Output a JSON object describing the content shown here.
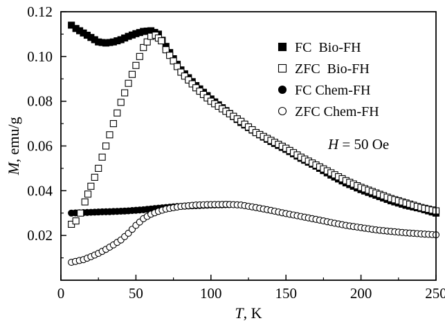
{
  "chart_data": {
    "type": "scatter",
    "title": "",
    "xlabel": {
      "var": "T",
      "unit": ", K"
    },
    "ylabel": {
      "var": "M",
      "unit": ", emu/g"
    },
    "xlim": [
      0,
      250
    ],
    "ylim": [
      0,
      0.12
    ],
    "x_ticks": [
      0,
      50,
      100,
      150,
      200,
      250
    ],
    "x_tick_labels": [
      "0",
      "50",
      "100",
      "150",
      "200",
      "250"
    ],
    "y_ticks": [
      0.02,
      0.04,
      0.06,
      0.08,
      0.1,
      0.12
    ],
    "y_tick_labels": [
      "0.02",
      "0.04",
      "0.06",
      "0.08",
      "0.10",
      "0.12"
    ],
    "grid": false,
    "legend_position": "top-right",
    "annotation": {
      "var": "H",
      "rest": " = 50 Oe"
    },
    "series": [
      {
        "name": "FC  Bio-FH",
        "marker": "square",
        "filled": true,
        "points": [
          [
            7,
            0.114
          ],
          [
            10,
            0.1125
          ],
          [
            15,
            0.1105
          ],
          [
            20,
            0.1085
          ],
          [
            25,
            0.1065
          ],
          [
            30,
            0.106
          ],
          [
            35,
            0.1065
          ],
          [
            40,
            0.1075
          ],
          [
            45,
            0.109
          ],
          [
            50,
            0.1102
          ],
          [
            55,
            0.1112
          ],
          [
            60,
            0.1115
          ],
          [
            65,
            0.11
          ],
          [
            70,
            0.1045
          ],
          [
            75,
            0.099
          ],
          [
            80,
            0.094
          ],
          [
            90,
            0.087
          ],
          [
            100,
            0.081
          ],
          [
            110,
            0.0758
          ],
          [
            120,
            0.0705
          ],
          [
            130,
            0.066
          ],
          [
            140,
            0.062
          ],
          [
            150,
            0.0585
          ],
          [
            160,
            0.0545
          ],
          [
            170,
            0.051
          ],
          [
            180,
            0.047
          ],
          [
            190,
            0.0435
          ],
          [
            200,
            0.0405
          ],
          [
            210,
            0.038
          ],
          [
            220,
            0.0355
          ],
          [
            230,
            0.0335
          ],
          [
            240,
            0.032
          ],
          [
            250,
            0.03
          ]
        ]
      },
      {
        "name": "ZFC  Bio-FH",
        "marker": "square",
        "filled": false,
        "points": [
          [
            7,
            0.025
          ],
          [
            10,
            0.0265
          ],
          [
            13,
            0.03
          ],
          [
            16,
            0.035
          ],
          [
            20,
            0.042
          ],
          [
            25,
            0.05
          ],
          [
            30,
            0.06
          ],
          [
            35,
            0.07
          ],
          [
            40,
            0.0795
          ],
          [
            45,
            0.088
          ],
          [
            50,
            0.096
          ],
          [
            55,
            0.104
          ],
          [
            60,
            0.109
          ],
          [
            63,
            0.1095
          ],
          [
            67,
            0.107
          ],
          [
            70,
            0.103
          ],
          [
            75,
            0.098
          ],
          [
            80,
            0.093
          ],
          [
            90,
            0.086
          ],
          [
            100,
            0.08
          ],
          [
            110,
            0.0755
          ],
          [
            120,
            0.071
          ],
          [
            130,
            0.066
          ],
          [
            140,
            0.0625
          ],
          [
            150,
            0.059
          ],
          [
            160,
            0.055
          ],
          [
            170,
            0.0515
          ],
          [
            180,
            0.048
          ],
          [
            190,
            0.0445
          ],
          [
            200,
            0.0415
          ],
          [
            210,
            0.039
          ],
          [
            220,
            0.0365
          ],
          [
            230,
            0.0345
          ],
          [
            240,
            0.0325
          ],
          [
            250,
            0.031
          ]
        ]
      },
      {
        "name": "FC Chem-FH",
        "marker": "circle",
        "filled": true,
        "points": [
          [
            7,
            0.03
          ],
          [
            15,
            0.0302
          ],
          [
            25,
            0.0305
          ],
          [
            35,
            0.0307
          ],
          [
            45,
            0.031
          ],
          [
            55,
            0.0315
          ],
          [
            65,
            0.0322
          ],
          [
            75,
            0.0328
          ],
          [
            85,
            0.0332
          ],
          [
            95,
            0.0335
          ],
          [
            105,
            0.0337
          ],
          [
            112,
            0.0338
          ]
        ]
      },
      {
        "name": "ZFC Chem-FH",
        "marker": "circle",
        "filled": false,
        "points": [
          [
            7,
            0.008
          ],
          [
            15,
            0.0092
          ],
          [
            20,
            0.0105
          ],
          [
            25,
            0.012
          ],
          [
            30,
            0.0138
          ],
          [
            35,
            0.0158
          ],
          [
            40,
            0.018
          ],
          [
            45,
            0.021
          ],
          [
            50,
            0.0245
          ],
          [
            55,
            0.0275
          ],
          [
            60,
            0.0295
          ],
          [
            65,
            0.0308
          ],
          [
            70,
            0.0318
          ],
          [
            80,
            0.033
          ],
          [
            90,
            0.0336
          ],
          [
            100,
            0.0338
          ],
          [
            110,
            0.0339
          ],
          [
            120,
            0.0336
          ],
          [
            130,
            0.0325
          ],
          [
            140,
            0.0312
          ],
          [
            150,
            0.0298
          ],
          [
            160,
            0.0285
          ],
          [
            170,
            0.0272
          ],
          [
            180,
            0.0258
          ],
          [
            190,
            0.0245
          ],
          [
            200,
            0.0235
          ],
          [
            210,
            0.0225
          ],
          [
            220,
            0.0218
          ],
          [
            230,
            0.0212
          ],
          [
            240,
            0.0207
          ],
          [
            250,
            0.0203
          ]
        ]
      }
    ]
  }
}
